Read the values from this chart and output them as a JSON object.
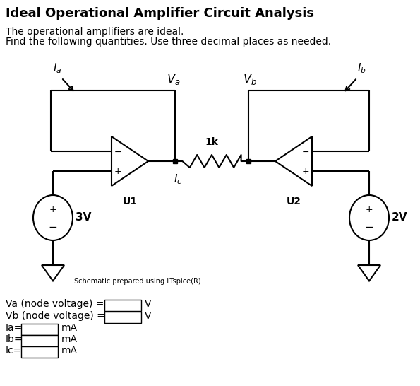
{
  "title": "Ideal Operational Amplifier Circuit Analysis",
  "subtitle_line1": "The operational amplifiers are ideal.",
  "subtitle_line2": "Find the following quantities. Use three decimal places as needed.",
  "schematic_note": "Schematic prepared using LTspice(R).",
  "answer_labels": [
    "Va (node voltage) =",
    "Vb (node voltage) =",
    "Ia=",
    "Ib=",
    "Ic="
  ],
  "answer_units": [
    "V",
    "V",
    "mA",
    "mA",
    "mA"
  ],
  "bg_color": "#ffffff",
  "line_color": "#000000",
  "title_fontsize": 13,
  "subtitle_fontsize": 10,
  "note_fontsize": 7,
  "answer_fontsize": 10
}
